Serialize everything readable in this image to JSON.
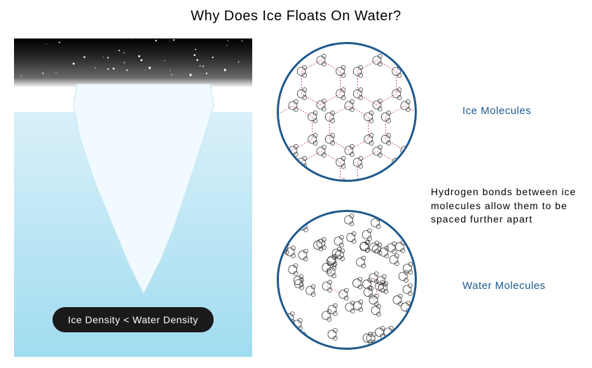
{
  "type": "infographic",
  "title": "Why Does Ice Floats On Water?",
  "colors": {
    "title_text": "#000000",
    "circle_border": "#1e5a8e",
    "label_text": "#1e5a8e",
    "water_top": "#d9f0f9",
    "water_bottom": "#a0dcf0",
    "iceberg_fill": "#f0faff",
    "iceberg_stroke": "#c4e6f2",
    "badge_bg": "#1a1a1a",
    "badge_text": "#ffffff",
    "bond_color": "#d14a7a",
    "molecule_stroke": "#333333",
    "sky_top": "#000000",
    "sky_bottom": "#ffffff"
  },
  "left_panel": {
    "sky_height": 70,
    "water_height": 350,
    "star_count": 40,
    "density_label": "Ice Density < Water Density"
  },
  "circles": {
    "diameter": 200,
    "border_width": 3,
    "ice": {
      "label": "Ice Molecules"
    },
    "water": {
      "label": "Water Molecules"
    }
  },
  "explanation_text": "Hydrogen bonds between ice molecules allow them to be spaced further apart",
  "typography": {
    "title_fontsize": 20,
    "label_fontsize": 15,
    "explanation_fontsize": 14,
    "badge_fontsize": 14
  }
}
